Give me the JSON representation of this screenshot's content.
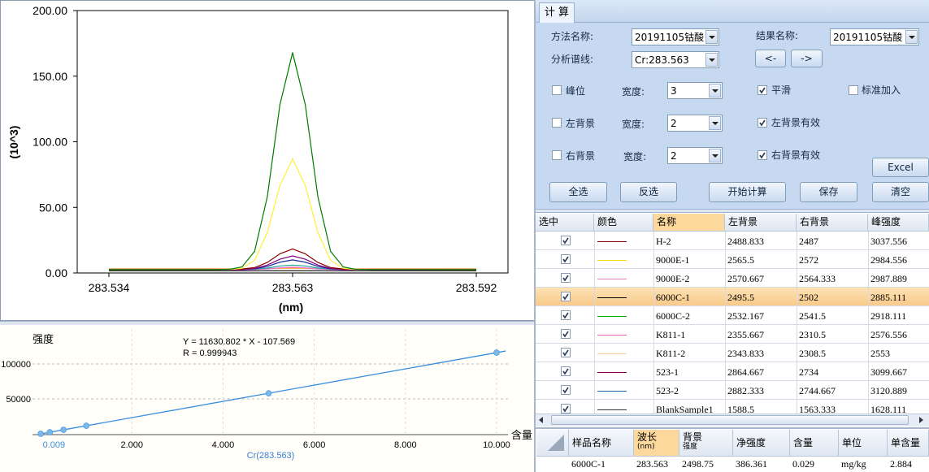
{
  "chart_data": [
    {
      "type": "line",
      "y_label": "(10^3)",
      "x_label": "(nm)",
      "x": [
        283.534,
        283.55,
        283.553,
        283.555,
        283.557,
        283.559,
        283.561,
        283.563,
        283.565,
        283.567,
        283.569,
        283.571,
        283.573,
        283.576,
        283.592
      ],
      "xlim": [
        283.529,
        283.597
      ],
      "ylim": [
        0,
        200
      ],
      "xticks": [
        283.534,
        283.563,
        283.592
      ],
      "yticks": [
        {
          "value": 0,
          "label": "0.00"
        },
        {
          "value": 50,
          "label": "50.00"
        },
        {
          "value": 100,
          "label": "100.00"
        },
        {
          "value": 150,
          "label": "150.00"
        },
        {
          "value": 200,
          "label": "200.00"
        }
      ],
      "series": [
        {
          "color": "#1a1a1a",
          "values": [
            1.6,
            1.6,
            1.6,
            1.6,
            1.6,
            1.7,
            1.7,
            1.7,
            1.7,
            1.7,
            1.6,
            1.6,
            1.6,
            1.6,
            1.6
          ]
        },
        {
          "color": "#ff8c00",
          "values": [
            3.0,
            3.0,
            3.0,
            3.0,
            3.1,
            3.3,
            3.6,
            3.8,
            3.6,
            3.3,
            3.1,
            3.0,
            3.0,
            3.0,
            3.0
          ]
        },
        {
          "color": "#e070d0",
          "values": [
            2.4,
            2.4,
            2.4,
            2.4,
            2.6,
            3.1,
            3.9,
            4.4,
            3.9,
            3.1,
            2.6,
            2.4,
            2.4,
            2.4,
            2.4
          ]
        },
        {
          "color": "#20a0a0",
          "values": [
            2.6,
            2.6,
            2.6,
            2.7,
            2.9,
            3.8,
            5.3,
            6,
            5.3,
            3.8,
            2.9,
            2.7,
            2.6,
            2.6,
            2.6
          ]
        },
        {
          "color": "#1a2a9a",
          "values": [
            2.5,
            2.5,
            2.5,
            2.6,
            3.1,
            5.0,
            8.2,
            10,
            8.2,
            5.0,
            3.1,
            2.6,
            2.5,
            2.5,
            2.5
          ]
        },
        {
          "color": "#800080",
          "values": [
            2.5,
            2.5,
            2.5,
            2.6,
            3.4,
            6.0,
            10.5,
            13,
            10.5,
            6.0,
            3.4,
            2.6,
            2.5,
            2.5,
            2.5
          ]
        },
        {
          "color": "#8b0000",
          "values": [
            2.8,
            2.8,
            2.8,
            3.0,
            4.1,
            8.0,
            14.6,
            18.3,
            14.6,
            8.0,
            4.1,
            3.0,
            2.8,
            2.8,
            2.8
          ]
        },
        {
          "color": "#ffee33",
          "values": [
            2.5,
            2.5,
            2.6,
            3.5,
            9.6,
            30.7,
            66.7,
            87,
            66.7,
            30.7,
            9.6,
            3.5,
            2.6,
            2.5,
            2.5
          ]
        },
        {
          "color": "#007a00",
          "values": [
            2.5,
            2.5,
            2.7,
            4.6,
            16.5,
            57.8,
            128.3,
            168,
            128.3,
            57.8,
            16.5,
            4.6,
            2.7,
            2.5,
            2.5
          ]
        }
      ]
    },
    {
      "type": "scatter",
      "y_label": "强度",
      "x_label": "Cr(283.563)",
      "x_axis_name": "含量",
      "equation": "Y = 11630.802 * X - 107.569",
      "r_text": "R = 0.999943",
      "x": [
        0,
        0.2,
        0.5,
        1,
        5,
        10
      ],
      "values": [
        0,
        2220,
        5700,
        11530,
        57900,
        116200
      ],
      "color": "#7ab8e8",
      "fit_line": {
        "color": "#3a8ee0",
        "x": [
          0,
          10.2
        ],
        "values": [
          -108,
          118527
        ]
      },
      "selected_x": 0.009,
      "selected_color": "#3a8ee0",
      "xlim": [
        -0.18,
        10.25
      ],
      "ylim": [
        -1200,
        150000
      ],
      "xticks": [
        {
          "value": 2,
          "label": "2.000"
        },
        {
          "value": 4,
          "label": "4.000"
        },
        {
          "value": 6,
          "label": "6.000"
        },
        {
          "value": 8,
          "label": "8.000"
        },
        {
          "value": 10,
          "label": "10.000"
        }
      ],
      "yticks": [
        50000,
        100000
      ],
      "grid": true
    }
  ],
  "form": {
    "tab": "计 算",
    "method_label": "方法名称:",
    "method": "20191105钴酸",
    "result_label": "结果名称:",
    "result": "20191105钴酸",
    "line_label": "分析谱线:",
    "line": "Cr:283.563",
    "prev": "<-",
    "next": "->",
    "rows": [
      {
        "check": {
          "label": "峰位",
          "checked": false
        },
        "width_label": "宽度:",
        "width": 3,
        "option": {
          "label": "平滑",
          "checked": true
        },
        "extra": {
          "label": "标准加入",
          "checked": false
        }
      },
      {
        "check": {
          "label": "左背景",
          "checked": false
        },
        "width_label": "宽度:",
        "width": 2,
        "option": {
          "label": "左背景有效",
          "checked": true
        }
      },
      {
        "check": {
          "label": "右背景",
          "checked": false
        },
        "width_label": "宽度:",
        "width": 2,
        "option": {
          "label": "右背景有效",
          "checked": true
        }
      }
    ],
    "excel": "Excel",
    "actions": [
      "全选",
      "反选",
      "开始计算",
      "保存",
      "清空"
    ]
  },
  "table": {
    "headers": [
      "选中",
      "颜色",
      "名称",
      "左背景",
      "右背景",
      "峰强度"
    ],
    "selected_row": 3,
    "rows": [
      {
        "checked": true,
        "color": "#800000",
        "name": "H-2",
        "left": "2488.833",
        "right": "2487",
        "peak": "3037.556"
      },
      {
        "checked": true,
        "color": "#ffd800",
        "name": "9000E-1",
        "left": "2565.5",
        "right": "2572",
        "peak": "2984.556"
      },
      {
        "checked": true,
        "color": "#e080c0",
        "name": "9000E-2",
        "left": "2570.667",
        "right": "2564.333",
        "peak": "2987.889"
      },
      {
        "checked": true,
        "color": "#000000",
        "name": "6000C-1",
        "left": "2495.5",
        "right": "2502",
        "peak": "2885.111"
      },
      {
        "checked": true,
        "color": "#00b000",
        "name": "6000C-2",
        "left": "2532.167",
        "right": "2541.5",
        "peak": "2918.111"
      },
      {
        "checked": true,
        "color": "#e060c0",
        "name": "K811-1",
        "left": "2355.667",
        "right": "2310.5",
        "peak": "2576.556"
      },
      {
        "checked": true,
        "color": "#ffd0a0",
        "name": "K811-2",
        "left": "2343.833",
        "right": "2308.5",
        "peak": "2553"
      },
      {
        "checked": true,
        "color": "#800060",
        "name": "523-1",
        "left": "2864.667",
        "right": "2734",
        "peak": "3099.667"
      },
      {
        "checked": true,
        "color": "#2060a0",
        "name": "523-2",
        "left": "2882.333",
        "right": "2744.667",
        "peak": "3120.889"
      },
      {
        "checked": true,
        "color": "#333333",
        "name": "BlankSample1",
        "left": "1588.5",
        "right": "1563.333",
        "peak": "1628.111"
      }
    ]
  },
  "result_table": {
    "headers": [
      [
        "样品名称"
      ],
      [
        "波长",
        "(nm)"
      ],
      [
        "背景",
        "强度"
      ],
      [
        "净强度"
      ],
      [
        "含量"
      ],
      [
        "单位"
      ],
      [
        "单含量"
      ]
    ],
    "row": [
      "6000C-1",
      "283.563",
      "2498.75",
      "386.361",
      "0.029",
      "mg/kg",
      "2.884"
    ]
  }
}
